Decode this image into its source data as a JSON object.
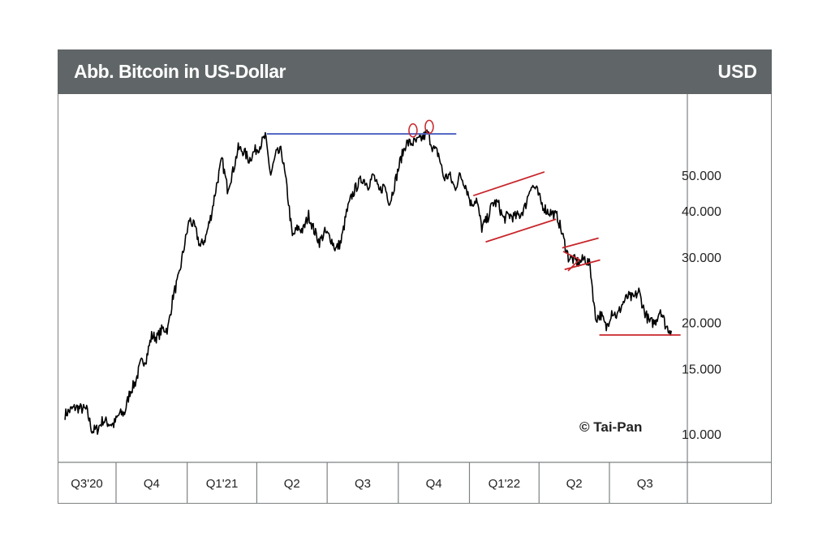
{
  "header": {
    "title": "Abb. Bitcoin in US-Dollar",
    "unit": "USD"
  },
  "copyright": "© Tai-Pan",
  "chart_data": {
    "type": "line",
    "title": "Abb. Bitcoin in US-Dollar",
    "ylabel": "USD",
    "yscale": "log",
    "ylim": [
      8800,
      82000
    ],
    "yticks": [
      10000,
      15000,
      20000,
      30000,
      40000,
      50000
    ],
    "ytick_labels": [
      "10.000",
      "15.000",
      "20.000",
      "30.000",
      "40.000",
      "50.000"
    ],
    "xtick_labels": [
      "Q3'20",
      "Q4",
      "Q1'21",
      "Q2",
      "Q3",
      "Q4",
      "Q1'22",
      "Q2",
      "Q3"
    ],
    "quarter_starts": [
      "2020-07-01",
      "2020-10-01",
      "2021-01-01",
      "2021-04-01",
      "2021-07-01",
      "2021-10-01",
      "2022-01-01",
      "2022-04-01",
      "2022-07-01",
      "2022-10-01"
    ],
    "line_color": "#000000",
    "grid": false,
    "series": [
      [
        "2020-07-27",
        11300
      ],
      [
        "2020-08-03",
        11600
      ],
      [
        "2020-08-10",
        11800
      ],
      [
        "2020-08-17",
        11700
      ],
      [
        "2020-08-24",
        11600
      ],
      [
        "2020-08-31",
        10200
      ],
      [
        "2020-09-07",
        10300
      ],
      [
        "2020-09-14",
        10900
      ],
      [
        "2020-09-21",
        10700
      ],
      [
        "2020-09-28",
        10600
      ],
      [
        "2020-10-05",
        11300
      ],
      [
        "2020-10-12",
        11400
      ],
      [
        "2020-10-19",
        13000
      ],
      [
        "2020-10-26",
        13800
      ],
      [
        "2020-11-02",
        15500
      ],
      [
        "2020-11-09",
        16000
      ],
      [
        "2020-11-16",
        18400
      ],
      [
        "2020-11-23",
        18200
      ],
      [
        "2020-11-30",
        19200
      ],
      [
        "2020-12-07",
        19200
      ],
      [
        "2020-12-14",
        23700
      ],
      [
        "2020-12-21",
        26400
      ],
      [
        "2020-12-28",
        32000
      ],
      [
        "2021-01-04",
        38000
      ],
      [
        "2021-01-11",
        36000
      ],
      [
        "2021-01-18",
        32000
      ],
      [
        "2021-01-25",
        34000
      ],
      [
        "2021-02-01",
        39000
      ],
      [
        "2021-02-08",
        47000
      ],
      [
        "2021-02-15",
        55000
      ],
      [
        "2021-02-22",
        46000
      ],
      [
        "2021-03-01",
        51000
      ],
      [
        "2021-03-08",
        59000
      ],
      [
        "2021-03-15",
        58000
      ],
      [
        "2021-03-22",
        55000
      ],
      [
        "2021-03-29",
        58000
      ],
      [
        "2021-04-05",
        60000
      ],
      [
        "2021-04-12",
        63500
      ],
      [
        "2021-04-19",
        50000
      ],
      [
        "2021-04-26",
        57000
      ],
      [
        "2021-05-03",
        58000
      ],
      [
        "2021-05-10",
        46000
      ],
      [
        "2021-05-17",
        34000
      ],
      [
        "2021-05-24",
        36000
      ],
      [
        "2021-05-31",
        35500
      ],
      [
        "2021-06-07",
        39000
      ],
      [
        "2021-06-14",
        35500
      ],
      [
        "2021-06-21",
        33000
      ],
      [
        "2021-06-28",
        35000
      ],
      [
        "2021-07-05",
        34000
      ],
      [
        "2021-07-12",
        31500
      ],
      [
        "2021-07-19",
        33000
      ],
      [
        "2021-07-26",
        39500
      ],
      [
        "2021-08-02",
        44000
      ],
      [
        "2021-08-09",
        47000
      ],
      [
        "2021-08-16",
        49000
      ],
      [
        "2021-08-23",
        47000
      ],
      [
        "2021-08-30",
        50000
      ],
      [
        "2021-09-06",
        45000
      ],
      [
        "2021-09-13",
        47000
      ],
      [
        "2021-09-20",
        42000
      ],
      [
        "2021-09-27",
        48000
      ],
      [
        "2021-10-04",
        55000
      ],
      [
        "2021-10-11",
        61000
      ],
      [
        "2021-10-18",
        61000
      ],
      [
        "2021-10-25",
        61500
      ],
      [
        "2021-11-01",
        63000
      ],
      [
        "2021-11-08",
        65000
      ],
      [
        "2021-11-15",
        59000
      ],
      [
        "2021-11-22",
        57000
      ],
      [
        "2021-11-29",
        49000
      ],
      [
        "2021-12-06",
        50000
      ],
      [
        "2021-12-13",
        46000
      ],
      [
        "2021-12-20",
        50000
      ],
      [
        "2021-12-27",
        47000
      ],
      [
        "2022-01-03",
        41800
      ],
      [
        "2022-01-10",
        43000
      ],
      [
        "2022-01-17",
        36000
      ],
      [
        "2022-01-24",
        38000
      ],
      [
        "2022-01-31",
        42000
      ],
      [
        "2022-02-07",
        42000
      ],
      [
        "2022-02-14",
        38000
      ],
      [
        "2022-02-21",
        39000
      ],
      [
        "2022-02-28",
        38500
      ],
      [
        "2022-03-07",
        39000
      ],
      [
        "2022-03-14",
        41000
      ],
      [
        "2022-03-21",
        46800
      ],
      [
        "2022-03-28",
        46000
      ],
      [
        "2022-04-04",
        42000
      ],
      [
        "2022-04-11",
        40000
      ],
      [
        "2022-04-18",
        39500
      ],
      [
        "2022-04-25",
        38500
      ],
      [
        "2022-05-02",
        34000
      ],
      [
        "2022-05-09",
        30000
      ],
      [
        "2022-05-16",
        29500
      ],
      [
        "2022-05-23",
        29000
      ],
      [
        "2022-05-30",
        29800
      ],
      [
        "2022-06-06",
        28500
      ],
      [
        "2022-06-13",
        20500
      ],
      [
        "2022-06-20",
        21000
      ],
      [
        "2022-06-27",
        19300
      ],
      [
        "2022-07-04",
        21500
      ],
      [
        "2022-07-11",
        20800
      ],
      [
        "2022-07-18",
        22500
      ],
      [
        "2022-07-25",
        23500
      ],
      [
        "2022-08-01",
        23200
      ],
      [
        "2022-08-08",
        24300
      ],
      [
        "2022-08-15",
        21500
      ],
      [
        "2022-08-22",
        20000
      ],
      [
        "2022-08-29",
        20000
      ],
      [
        "2022-09-05",
        21800
      ],
      [
        "2022-09-12",
        19500
      ],
      [
        "2022-09-19",
        19000
      ]
    ],
    "annotations": {
      "resistance_line": {
        "color": "#4a5fc1",
        "from": [
          "2021-04-14",
          64600
        ],
        "to": [
          "2021-12-15",
          64600
        ]
      },
      "double_top_circles": {
        "color": "#c8262b",
        "points": [
          [
            "2021-10-20",
            66000
          ],
          [
            "2021-11-10",
            67500
          ]
        ]
      },
      "channel_1": {
        "color": "#c8262b",
        "upper": [
          [
            "2022-01-06",
            44000
          ],
          [
            "2022-04-08",
            51000
          ]
        ],
        "lower": [
          [
            "2022-01-22",
            33000
          ],
          [
            "2022-04-23",
            38000
          ]
        ]
      },
      "channel_2": {
        "color": "#c8262b",
        "upper": [
          [
            "2022-05-01",
            31800
          ],
          [
            "2022-06-17",
            33800
          ]
        ],
        "lower": [
          [
            "2022-05-04",
            27800
          ],
          [
            "2022-06-19",
            29500
          ]
        ]
      },
      "triangle": {
        "color": "#c8262b"
      },
      "support_line": {
        "color": "#c8262b",
        "from": [
          "2022-06-18",
          18500
        ],
        "to": [
          "2022-10-01",
          18500
        ]
      }
    }
  }
}
